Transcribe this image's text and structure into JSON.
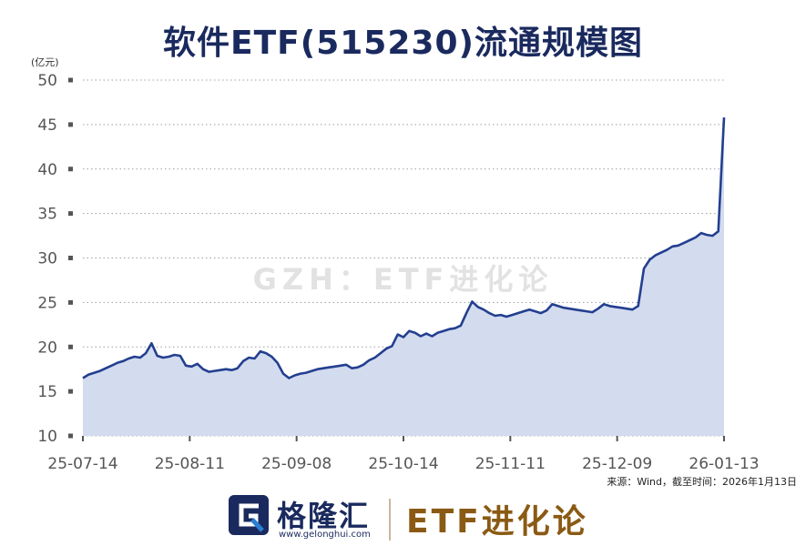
{
  "title": "软件ETF(515230)流通规模图",
  "unit_label": "(亿元)",
  "source_note": "来源：Wind，截至时间：2026年1月13日",
  "watermark": "GZH：ETF进化论",
  "footer": {
    "brand_name": "格隆汇",
    "brand_url": "www.gelonghui.com",
    "right_brand": "ETF进化论"
  },
  "colors": {
    "line": "#233f8f",
    "area": "#d3dbef",
    "title": "#1a2a5e",
    "right_brand": "#8a5a14"
  },
  "chart_data": {
    "type": "area",
    "title": "软件ETF(515230)流通规模图",
    "ylabel": "(亿元)",
    "xlabel": "",
    "ylim": [
      10,
      50
    ],
    "yticks": [
      10,
      15,
      20,
      25,
      30,
      35,
      40,
      45,
      50
    ],
    "xtick_labels": [
      "25-07-14",
      "25-08-11",
      "25-09-08",
      "25-10-14",
      "25-11-11",
      "25-12-09",
      "26-01-13"
    ],
    "grid": "horizontal dotted",
    "series": [
      {
        "name": "",
        "values": [
          16.5,
          16.9,
          17.1,
          17.3,
          17.6,
          17.9,
          18.2,
          18.4,
          18.7,
          18.9,
          18.8,
          19.3,
          20.4,
          19.0,
          18.8,
          18.9,
          19.1,
          19.0,
          17.9,
          17.8,
          18.1,
          17.5,
          17.2,
          17.3,
          17.4,
          17.5,
          17.4,
          17.6,
          18.4,
          18.8,
          18.7,
          19.5,
          19.3,
          18.9,
          18.2,
          17.0,
          16.5,
          16.8,
          17.0,
          17.1,
          17.3,
          17.5,
          17.6,
          17.7,
          17.8,
          17.9,
          18.0,
          17.6,
          17.7,
          18.0,
          18.5,
          18.8,
          19.3,
          19.8,
          20.1,
          21.4,
          21.1,
          21.8,
          21.6,
          21.2,
          21.5,
          21.2,
          21.6,
          21.8,
          22.0,
          22.1,
          22.4,
          23.8,
          25.1,
          24.5,
          24.2,
          23.8,
          23.5,
          23.6,
          23.4,
          23.6,
          23.8,
          24.0,
          24.2,
          24.0,
          23.8,
          24.1,
          24.8,
          24.6,
          24.4,
          24.3,
          24.2,
          24.1,
          24.0,
          23.9,
          24.3,
          24.8,
          24.6,
          24.5,
          24.4,
          24.3,
          24.2,
          24.6,
          28.8,
          29.8,
          30.3,
          30.6,
          30.9,
          31.3,
          31.4,
          31.7,
          32.0,
          32.3,
          32.8,
          32.6,
          32.5,
          33.0,
          45.8
        ]
      }
    ]
  }
}
